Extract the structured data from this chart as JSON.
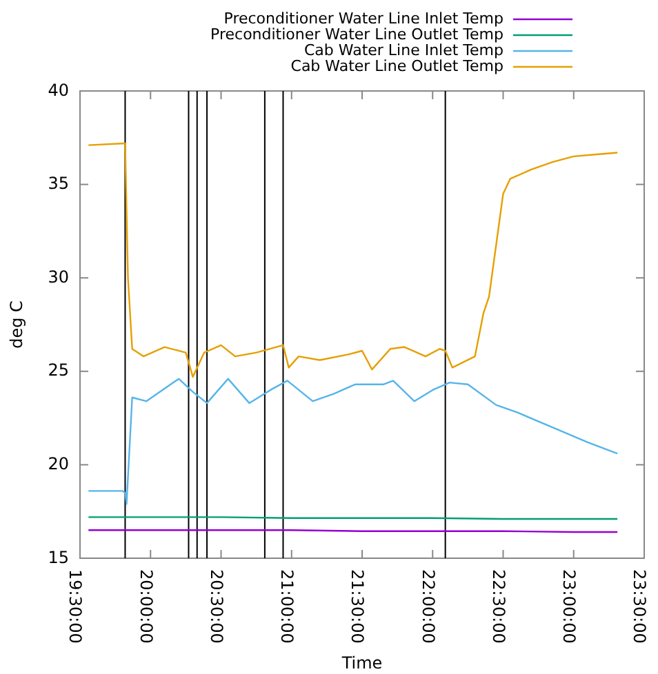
{
  "chart_data": {
    "type": "line",
    "xlabel": "Time",
    "ylabel": "deg C",
    "xlim": [
      19.5,
      23.5
    ],
    "ylim": [
      15,
      40
    ],
    "xticks": [
      {
        "value": 19.5,
        "label": "19:30:00"
      },
      {
        "value": 20,
        "label": "20:00:00"
      },
      {
        "value": 20.5,
        "label": "20:30:00"
      },
      {
        "value": 21,
        "label": "21:00:00"
      },
      {
        "value": 21.5,
        "label": "21:30:00"
      },
      {
        "value": 22,
        "label": "22:00:00"
      },
      {
        "value": 22.5,
        "label": "22:30:00"
      },
      {
        "value": 23,
        "label": "23:00:00"
      },
      {
        "value": 23.5,
        "label": "23:30:00"
      }
    ],
    "yticks": [
      15,
      20,
      25,
      30,
      35,
      40
    ],
    "grid": false,
    "legend": "top right",
    "line_style": "solid",
    "marker": "none",
    "series": [
      {
        "name": "Preconditioner Water Line Inlet Temp",
        "color": "#9400d3",
        "x": [
          19.56,
          20.5,
          21.0,
          21.5,
          22.0,
          22.5,
          23.0,
          23.31
        ],
        "values": [
          16.5,
          16.5,
          16.5,
          16.45,
          16.45,
          16.45,
          16.4,
          16.4
        ]
      },
      {
        "name": "Preconditioner Water Line Outlet Temp",
        "color": "#009e73",
        "x": [
          19.56,
          20.5,
          21.0,
          21.5,
          22.0,
          22.5,
          23.0,
          23.31
        ],
        "values": [
          17.2,
          17.2,
          17.15,
          17.15,
          17.15,
          17.1,
          17.1,
          17.1
        ]
      },
      {
        "name": "Cab Water Line Inlet Temp",
        "color": "#56b4e9",
        "x": [
          19.56,
          19.8,
          19.82,
          19.83,
          19.87,
          19.97,
          20.2,
          20.3,
          20.4,
          20.55,
          20.7,
          20.85,
          20.97,
          21.15,
          21.3,
          21.45,
          21.65,
          21.72,
          21.87,
          22.0,
          22.12,
          22.25,
          22.45,
          22.6,
          22.85,
          23.1,
          23.31
        ],
        "values": [
          18.6,
          18.6,
          18.5,
          17.9,
          23.6,
          23.4,
          24.6,
          23.9,
          23.3,
          24.6,
          23.3,
          24.0,
          24.5,
          23.4,
          23.8,
          24.3,
          24.3,
          24.5,
          23.4,
          24.0,
          24.4,
          24.3,
          23.2,
          22.8,
          22.0,
          21.2,
          20.6
        ]
      },
      {
        "name": "Cab Water Line Outlet Temp",
        "color": "#e69f00",
        "x": [
          19.56,
          19.82,
          19.84,
          19.87,
          19.95,
          20.1,
          20.25,
          20.3,
          20.38,
          20.5,
          20.6,
          20.75,
          20.94,
          20.98,
          21.05,
          21.2,
          21.4,
          21.5,
          21.57,
          21.7,
          21.8,
          21.95,
          22.05,
          22.09,
          22.14,
          22.3,
          22.36,
          22.4,
          22.5,
          22.55,
          22.7,
          22.85,
          23.0,
          23.15,
          23.31
        ],
        "values": [
          37.1,
          37.2,
          30.0,
          26.2,
          25.8,
          26.3,
          26.0,
          24.7,
          26.0,
          26.4,
          25.8,
          26.0,
          26.4,
          25.2,
          25.8,
          25.6,
          25.9,
          26.1,
          25.1,
          26.2,
          26.3,
          25.8,
          26.2,
          26.1,
          25.2,
          25.8,
          28.1,
          29.0,
          34.5,
          35.3,
          35.8,
          36.2,
          36.5,
          36.6,
          36.7
        ]
      }
    ],
    "ref_lines": [
      {
        "axis": "x",
        "value": 19.82,
        "color": "#000000"
      },
      {
        "axis": "x",
        "value": 20.27,
        "color": "#000000"
      },
      {
        "axis": "x",
        "value": 20.33,
        "color": "#000000"
      },
      {
        "axis": "x",
        "value": 20.4,
        "color": "#000000"
      },
      {
        "axis": "x",
        "value": 20.81,
        "color": "#000000"
      },
      {
        "axis": "x",
        "value": 20.94,
        "color": "#000000"
      },
      {
        "axis": "x",
        "value": 22.09,
        "color": "#000000"
      }
    ]
  }
}
